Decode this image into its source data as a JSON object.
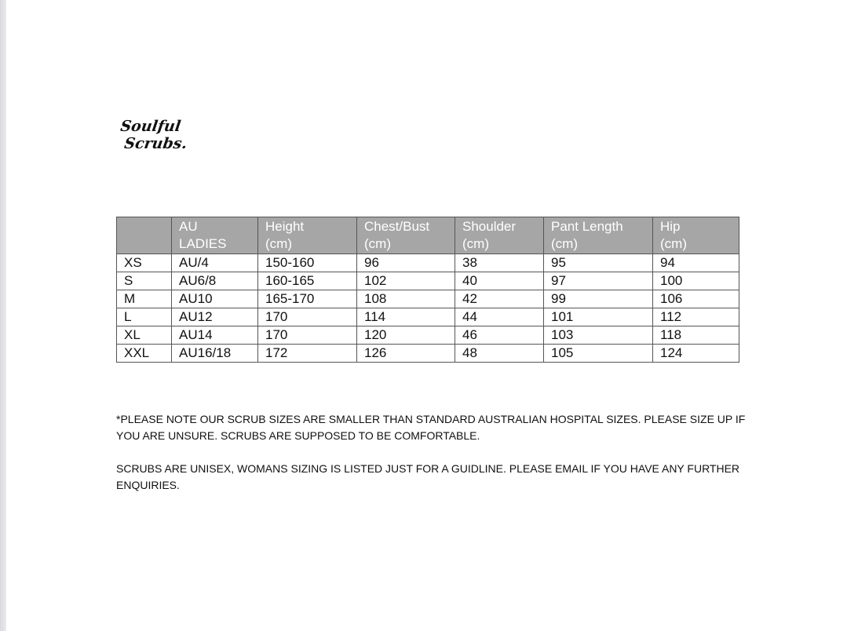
{
  "logo": {
    "line1": "Soulful",
    "line2": "Scrubs."
  },
  "table": {
    "headers": [
      [
        "",
        ""
      ],
      [
        "AU",
        "LADIES"
      ],
      [
        "Height",
        "(cm)"
      ],
      [
        "Chest/Bust",
        "(cm)"
      ],
      [
        "Shoulder",
        "(cm)"
      ],
      [
        "Pant Length",
        "(cm)"
      ],
      [
        "Hip",
        "(cm)"
      ]
    ],
    "rows": [
      [
        "XS",
        "AU/4",
        "150-160",
        "96",
        "38",
        "95",
        "94"
      ],
      [
        "S",
        "AU6/8",
        "160-165",
        "102",
        "40",
        "97",
        "100"
      ],
      [
        "M",
        "AU10",
        "165-170",
        "108",
        "42",
        "99",
        "106"
      ],
      [
        "L",
        "AU12",
        "170",
        "114",
        "44",
        "101",
        "112"
      ],
      [
        "XL",
        "AU14",
        "170",
        "120",
        "46",
        "103",
        "118"
      ],
      [
        "XXL",
        "AU16/18",
        "172",
        "126",
        "48",
        "105",
        "124"
      ]
    ],
    "header_color": "#a6a6a6"
  },
  "notes": [
    "*PLEASE NOTE OUR SCRUB SIZES ARE SMALLER THAN STANDARD AUSTRALIAN HOSPITAL SIZES. PLEASE SIZE UP IF YOU ARE UNSURE. SCRUBS ARE SUPPOSED TO BE COMFORTABLE.",
    "SCRUBS ARE UNISEX, WOMANS SIZING IS LISTED JUST FOR A GUIDLINE. PLEASE EMAIL IF YOU HAVE ANY FURTHER ENQUIRIES."
  ]
}
